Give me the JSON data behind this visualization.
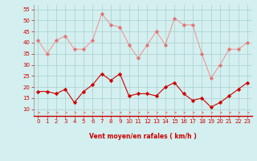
{
  "x": [
    0,
    1,
    2,
    3,
    4,
    5,
    6,
    7,
    8,
    9,
    10,
    11,
    12,
    13,
    14,
    15,
    16,
    17,
    18,
    19,
    20,
    21,
    22,
    23
  ],
  "vent_moyen": [
    18,
    18,
    17,
    19,
    13,
    18,
    21,
    26,
    23,
    26,
    16,
    17,
    17,
    16,
    20,
    22,
    17,
    14,
    15,
    11,
    13,
    16,
    19,
    22
  ],
  "rafales": [
    41,
    35,
    41,
    43,
    37,
    37,
    41,
    53,
    48,
    47,
    39,
    33,
    39,
    45,
    39,
    51,
    48,
    48,
    35,
    24,
    30,
    37,
    37,
    40
  ],
  "bg_color": "#d4efef",
  "grid_color": "#aed4d4",
  "line_moyen_color": "#cc0000",
  "line_rafales_color": "#ee9999",
  "marker_moyen_color": "#cc0000",
  "marker_rafales_color": "#dd7777",
  "xlabel": "Vent moyen/en rafales ( km/h )",
  "xlabel_color": "#cc0000",
  "ylim": [
    7,
    57
  ],
  "yticks": [
    10,
    15,
    20,
    25,
    30,
    35,
    40,
    45,
    50,
    55
  ],
  "arrow_color": "#dd8888",
  "tick_color": "#cc0000"
}
